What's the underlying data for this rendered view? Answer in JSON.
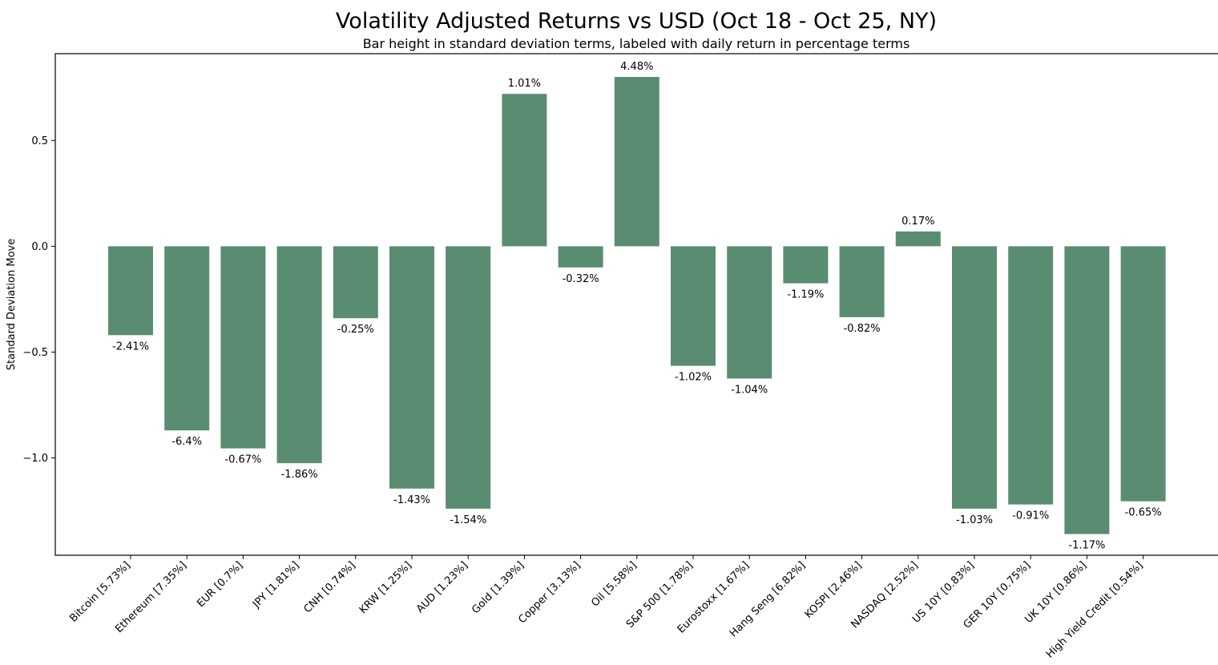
{
  "colors": {
    "bar": "#5a8c72",
    "axis": "#000000",
    "background": "#ffffff"
  },
  "chart_data": {
    "type": "bar",
    "title": "Volatility Adjusted Returns vs USD (Oct 18 - Oct 25, NY)",
    "subtitle": "Bar height in standard deviation terms, labeled with daily return in percentage terms",
    "xlabel": "",
    "ylabel": "Standard Deviation Move",
    "ylim": [
      -1.46,
      0.91
    ],
    "yticks": [
      -1.0,
      -0.5,
      0.0,
      0.5
    ],
    "ytick_labels": [
      "−1.0",
      "−0.5",
      "0.0",
      "0.5"
    ],
    "grid": false,
    "categories": [
      "Bitcoin [5.73%]",
      "Ethereum [7.35%]",
      "EUR [0.7%]",
      "JPY [1.81%]",
      "CNH [0.74%]",
      "KRW [1.25%]",
      "AUD [1.23%]",
      "Gold [1.39%]",
      "Copper [3.13%]",
      "Oil [5.58%]",
      "S&P 500 [1.78%]",
      "Eurostoxx [1.67%]",
      "Hang Seng [6.82%]",
      "KOSPI [2.46%]",
      "NASDAQ [2.52%]",
      "US 10Y [0.83%]",
      "GER 10Y [0.75%]",
      "UK 10Y [0.86%]",
      "High Yield Credit [0.54%]"
    ],
    "values": [
      -0.42,
      -0.87,
      -0.955,
      -1.025,
      -0.34,
      -1.145,
      -1.24,
      0.72,
      -0.1,
      0.8,
      -0.565,
      -0.625,
      -0.175,
      -0.335,
      0.07,
      -1.24,
      -1.22,
      -1.36,
      -1.205
    ],
    "data_labels": [
      "-2.41%",
      "-6.4%",
      "-0.67%",
      "-1.86%",
      "-0.25%",
      "-1.43%",
      "-1.54%",
      "1.01%",
      "-0.32%",
      "4.48%",
      "-1.02%",
      "-1.04%",
      "-1.19%",
      "-0.82%",
      "0.17%",
      "-1.03%",
      "-0.91%",
      "-1.17%",
      "-0.65%"
    ]
  }
}
